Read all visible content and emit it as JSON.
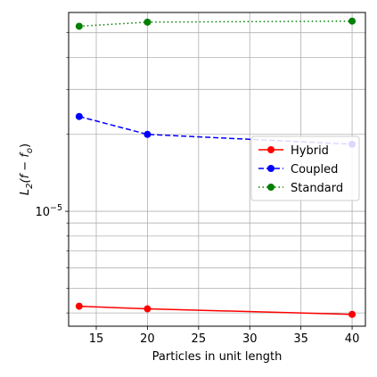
{
  "chart_data": {
    "type": "line",
    "title": "",
    "xlabel": "Particles in unit length",
    "ylabel": "L_2(f - f_o)",
    "ylabel_parts": {
      "main": "L",
      "sub": "2",
      "paren": "(f − f",
      "sub2": "o",
      "close": ")"
    },
    "xlim": [
      12.3,
      41.3
    ],
    "ylim": [
      3.55e-06,
      6e-05
    ],
    "yscale": "log",
    "x_ticks": [
      15,
      20,
      25,
      30,
      35,
      40
    ],
    "x_tick_labels": [
      "15",
      "20",
      "25",
      "30",
      "35",
      "40"
    ],
    "y_major_ticks": [
      1e-05
    ],
    "y_major_label": {
      "base": "10",
      "exp": "−5"
    },
    "y_minor_ticks": [
      4e-06,
      5e-06,
      6e-06,
      7e-06,
      8e-06,
      9e-06,
      2e-05,
      3e-05,
      4e-05,
      5e-05
    ],
    "grid": true,
    "legend_position": "center-right",
    "series": [
      {
        "name": "Hybrid",
        "x": [
          13.33,
          20,
          40
        ],
        "y": [
          4.25e-06,
          4.15e-06,
          3.95e-06
        ],
        "color": "#ff0000",
        "linestyle": "solid"
      },
      {
        "name": "Coupled",
        "x": [
          13.33,
          20,
          40
        ],
        "y": [
          2.35e-05,
          2e-05,
          1.83e-05
        ],
        "color": "#0000ff",
        "linestyle": "dashed"
      },
      {
        "name": "Standard",
        "x": [
          13.33,
          20,
          40
        ],
        "y": [
          5.3e-05,
          5.5e-05,
          5.55e-05
        ],
        "color": "#008000",
        "linestyle": "dotted"
      }
    ]
  }
}
